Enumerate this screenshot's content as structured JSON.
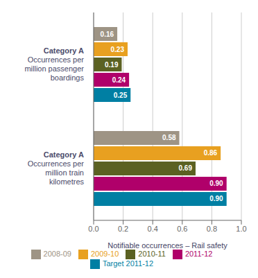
{
  "chart_data": {
    "type": "bar",
    "orientation": "horizontal",
    "xlabel": "Notifiable occurrences – Rail safety",
    "categories": [
      "Category A\nOccurrences per\nmillion passenger\nboardings",
      "Category A\nOccurrences per\nmillion train\nkilometres"
    ],
    "series": [
      {
        "name": "2008-09",
        "color": "#9e9485",
        "values": [
          0.16,
          0.58
        ],
        "value_labels": [
          "0.16",
          "0.58"
        ]
      },
      {
        "name": "2009-10",
        "color": "#e8a020",
        "values": [
          0.23,
          0.86
        ],
        "value_labels": [
          "0.23",
          "0.86"
        ]
      },
      {
        "name": "2010-11",
        "color": "#5b6122",
        "values": [
          0.19,
          0.69
        ],
        "value_labels": [
          "0.19",
          "0.69"
        ]
      },
      {
        "name": "2011-12",
        "color": "#b0006a",
        "values": [
          0.24,
          0.9
        ],
        "value_labels": [
          "0.24",
          "0.90"
        ]
      },
      {
        "name": "Target 2011-12",
        "color": "#007fa3",
        "values": [
          0.25,
          0.9
        ],
        "value_labels": [
          "0.25",
          "0.90"
        ]
      }
    ],
    "xlim": [
      0,
      1.0
    ],
    "xticks": [
      {
        "value": 0,
        "label": "0.0"
      },
      0.2,
      0.4,
      0.6,
      0.8,
      {
        "value": 1,
        "label": "1.0"
      }
    ],
    "grid": true,
    "legend": "bottom",
    "data_labels": true
  }
}
